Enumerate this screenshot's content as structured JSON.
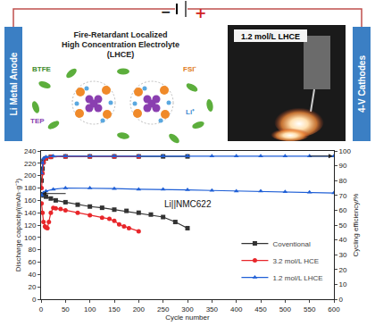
{
  "diagram": {
    "negative": "−",
    "positive": "+",
    "anode": "Li Metal Anode",
    "cathode": "4-V Cathodes",
    "title_lines": [
      "Fire-Retardant Localized",
      "High Concentration Electrolyte",
      "(LHCE)"
    ],
    "labels": {
      "btfe": "BTFE",
      "fsi": "FSI⁻",
      "tep": "TEP",
      "li": "Li⁺"
    },
    "photo_label": "1.2 mol/L LHCE"
  },
  "chart_data": {
    "type": "line",
    "title": "Li||NMC622",
    "x_label": "Cycle number",
    "y_label": "Discharge capacity/(mAh·g⁻¹)",
    "y2_label": "Cycling efficiency/%",
    "xlim": [
      0,
      600
    ],
    "xticks": [
      0,
      50,
      100,
      150,
      200,
      250,
      300,
      350,
      400,
      450,
      500,
      550,
      600
    ],
    "ylim": [
      0,
      240
    ],
    "yticks": [
      0,
      20,
      40,
      60,
      80,
      100,
      120,
      140,
      160,
      180,
      200,
      220,
      240
    ],
    "y2lim": [
      0,
      100
    ],
    "y2ticks": [
      0,
      10,
      20,
      30,
      40,
      50,
      60,
      70,
      80,
      90,
      100
    ],
    "grid": false,
    "legend": "bottom right",
    "series": [
      {
        "name": "Coventional",
        "color": "#333333",
        "marker": "square",
        "x": [
          1,
          5,
          10,
          20,
          30,
          50,
          75,
          100,
          125,
          150,
          175,
          200,
          225,
          250,
          275,
          300
        ],
        "values": [
          170,
          168,
          166,
          163,
          160,
          157,
          153,
          150,
          148,
          145,
          143,
          140,
          137,
          133,
          125,
          115
        ]
      },
      {
        "name": "3.2 mol/L HCE",
        "color": "#e8262a",
        "marker": "circle",
        "x": [
          1,
          3,
          5,
          8,
          10,
          13,
          16,
          20,
          25,
          30,
          40,
          50,
          75,
          100,
          125,
          140,
          150,
          160,
          170,
          180,
          200
        ],
        "values": [
          155,
          140,
          125,
          118,
          116,
          115,
          125,
          140,
          148,
          147,
          146,
          144,
          140,
          136,
          132,
          130,
          127,
          121,
          118,
          115,
          110
        ]
      },
      {
        "name": "1.2 mol/L LHCE",
        "color": "#1f5fd6",
        "marker": "triangle-up",
        "x": [
          1,
          5,
          10,
          25,
          50,
          100,
          150,
          200,
          250,
          300,
          350,
          400,
          450,
          500,
          550,
          600
        ],
        "values": [
          168,
          172,
          175,
          178,
          180,
          180,
          179,
          178,
          178,
          177,
          176,
          175,
          175,
          174,
          173,
          172
        ]
      },
      {
        "name": "Coventional",
        "color": "#333333",
        "marker": "square",
        "axis": "y2",
        "x": [
          1,
          3,
          5,
          10,
          20,
          50,
          100,
          150,
          200,
          250,
          300
        ],
        "values": [
          80,
          88,
          93,
          95,
          96,
          96.3,
          96.3,
          96.3,
          96.3,
          96.3,
          96.3
        ]
      },
      {
        "name": "3.2 mol/L HCE",
        "color": "#e8262a",
        "marker": "circle",
        "axis": "y2",
        "x": [
          1,
          3,
          5,
          10,
          20,
          50,
          100,
          150,
          200
        ],
        "values": [
          75,
          85,
          92,
          95,
          96,
          96.3,
          96.3,
          96.3,
          96.3
        ]
      },
      {
        "name": "1.2 mol/L LHCE",
        "color": "#1f5fd6",
        "marker": "triangle-up",
        "axis": "y2",
        "x": [
          1,
          3,
          5,
          10,
          25,
          50,
          100,
          150,
          200,
          250,
          300,
          350,
          400,
          450,
          500,
          550,
          600
        ],
        "values": [
          85,
          92,
          95,
          96,
          96.5,
          96.5,
          96.5,
          96.5,
          96.5,
          96.5,
          96.5,
          96.5,
          96.5,
          96.5,
          96.5,
          96.5,
          96.5
        ]
      }
    ]
  }
}
